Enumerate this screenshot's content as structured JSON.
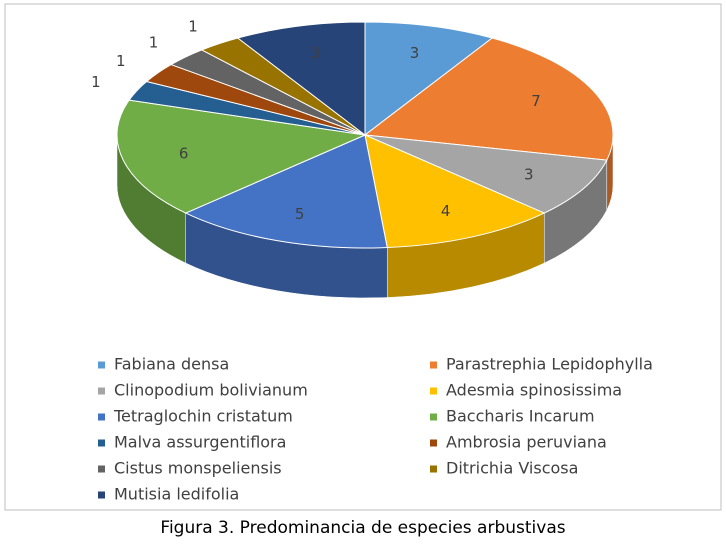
{
  "chart_data": {
    "type": "pie3d",
    "caption": "Figura 3. Predominancia de especies arbustivas",
    "categories": [
      "Fabiana densa",
      "Parastrephia Lepidophylla",
      "Clinopodium bolivianum",
      "Adesmia spinosissima",
      "Tetraglochin cristatum",
      "Baccharis Incarum",
      "Malva assurgentiflora",
      "Ambrosia peruviana",
      "Cistus monspeliensis",
      "Ditrichia Viscosa",
      "Mutisia ledifolia"
    ],
    "values": [
      3,
      7,
      3,
      4,
      5,
      6,
      1,
      1,
      1,
      1,
      3
    ],
    "colors": [
      "#5B9BD5",
      "#ED7D31",
      "#A5A5A5",
      "#FFC000",
      "#4472C4",
      "#70AD47",
      "#255E91",
      "#9E480E",
      "#636363",
      "#997300",
      "#264478"
    ]
  }
}
